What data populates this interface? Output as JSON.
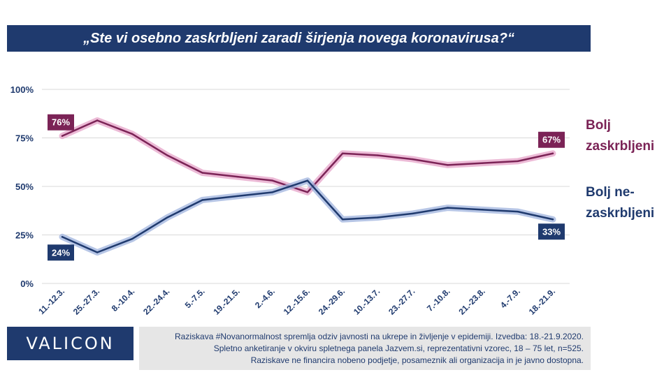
{
  "title": "„Ste vi osebno zaskrbljeni zaradi širjenja novega koronavirusa?“",
  "chart_data": {
    "type": "line",
    "categories": [
      "11.-12.3.",
      "25.-27.3.",
      "8.-10.4.",
      "22.-24.4.",
      "5.-7.5.",
      "19.-21.5.",
      "2.-4.6.",
      "12.-15.6.",
      "24.-29.6.",
      "10.-13.7.",
      "23.-27.7.",
      "7.-10.8.",
      "21.-23.8.",
      "4.-7.9.",
      "18.-21.9."
    ],
    "y_ticks": [
      "100%",
      "75%",
      "50%",
      "25%",
      "0%"
    ],
    "ylim": [
      0,
      100
    ],
    "grid": true,
    "series": [
      {
        "name": "Bolj zaskrbljeni",
        "color": "#7b2356",
        "glow": "#e6a3c8",
        "values": [
          76,
          84,
          77,
          66,
          57,
          55,
          53,
          47,
          67,
          66,
          64,
          61,
          62,
          63,
          67
        ],
        "start_label": "76%",
        "end_label": "67%"
      },
      {
        "name": "Bolj ne-zaskrbljeni",
        "color": "#1f3a6e",
        "glow": "#9fb3dd",
        "values": [
          24,
          16,
          23,
          34,
          43,
          45,
          47,
          53,
          33,
          34,
          36,
          39,
          38,
          37,
          33
        ],
        "start_label": "24%",
        "end_label": "33%"
      }
    ]
  },
  "legend": {
    "concerned": [
      "Bolj",
      "zaskrbljeni"
    ],
    "not_concerned": [
      "Bolj ne-",
      "zaskrbljeni"
    ]
  },
  "logo": "VALICON",
  "footer": {
    "line1": "Raziskava #Novanormalnost spremlja odziv javnosti na ukrepe in življenje v epidemiji. Izvedba: 18.-21.9.2020.",
    "line2": "Spletno anketiranje v okviru spletnega panela Jazvem.si, reprezentativni vzorec, 18 – 75 let, n=525.",
    "line3": "Raziskave ne financira nobeno podjetje, posameznik ali organizacija in je javno dostopna."
  }
}
